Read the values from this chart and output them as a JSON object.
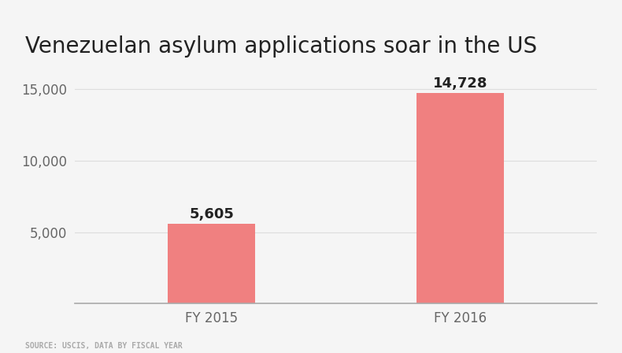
{
  "title": "Venezuelan asylum applications soar in the US",
  "categories": [
    "FY 2015",
    "FY 2016"
  ],
  "values": [
    5605,
    14728
  ],
  "bar_color": "#F08080",
  "value_labels": [
    "5,605",
    "14,728"
  ],
  "yticks": [
    0,
    5000,
    10000,
    15000
  ],
  "ytick_labels": [
    "",
    "5,000",
    "10,000",
    "15,000"
  ],
  "ylim": [
    0,
    16800
  ],
  "background_color": "#f5f5f5",
  "title_fontsize": 20,
  "tick_fontsize": 12,
  "value_fontsize": 13,
  "source_text": "SOURCE: USCIS, DATA BY FISCAL YEAR",
  "source_fontsize": 7,
  "bar_width": 0.35
}
